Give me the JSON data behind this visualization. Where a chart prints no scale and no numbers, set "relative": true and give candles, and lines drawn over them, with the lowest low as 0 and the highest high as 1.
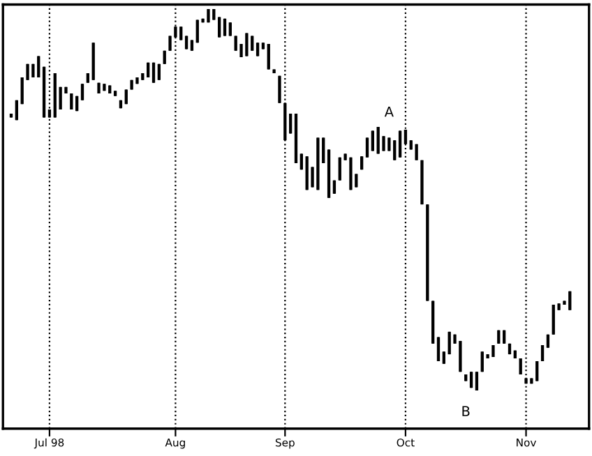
{
  "chart_data": {
    "type": "candlestick",
    "relative": true,
    "categories": [
      null,
      null,
      null,
      null,
      null,
      null,
      null,
      "Jul 98",
      null,
      null,
      null,
      null,
      null,
      null,
      null,
      null,
      null,
      null,
      null,
      null,
      null,
      null,
      null,
      null,
      null,
      null,
      null,
      null,
      null,
      null,
      "Aug",
      null,
      null,
      null,
      null,
      null,
      null,
      null,
      null,
      null,
      null,
      null,
      null,
      null,
      null,
      null,
      null,
      null,
      null,
      null,
      "Sep",
      null,
      null,
      null,
      null,
      null,
      null,
      null,
      null,
      null,
      null,
      null,
      null,
      null,
      null,
      null,
      null,
      null,
      null,
      null,
      null,
      null,
      "Oct",
      null,
      null,
      null,
      null,
      null,
      null,
      null,
      null,
      null,
      null,
      null,
      null,
      null,
      null,
      null,
      null,
      null,
      null,
      null,
      null,
      null,
      "Nov",
      null,
      null,
      null,
      null,
      null,
      null,
      null,
      null
    ],
    "ohlc": [
      [
        0.716,
        0.726,
        0.716,
        0.726
      ],
      [
        0.709,
        0.761,
        0.709,
        0.761
      ],
      [
        0.751,
        0.821,
        0.751,
        0.821
      ],
      [
        0.814,
        0.856,
        0.814,
        0.856
      ],
      [
        0.821,
        0.856,
        0.821,
        0.856
      ],
      [
        0.821,
        0.877,
        0.821,
        0.877
      ],
      [
        0.716,
        0.849,
        0.716,
        0.849
      ],
      [
        0.716,
        0.737,
        0.716,
        0.737
      ],
      [
        0.716,
        0.832,
        0.716,
        0.832
      ],
      [
        0.737,
        0.796,
        0.737,
        0.796
      ],
      [
        0.779,
        0.796,
        0.779,
        0.796
      ],
      [
        0.737,
        0.779,
        0.737,
        0.779
      ],
      [
        0.733,
        0.772,
        0.733,
        0.772
      ],
      [
        0.761,
        0.804,
        0.761,
        0.804
      ],
      [
        0.807,
        0.832,
        0.807,
        0.832
      ],
      [
        0.814,
        0.912,
        0.814,
        0.912
      ],
      [
        0.779,
        0.807,
        0.779,
        0.807
      ],
      [
        0.786,
        0.804,
        0.786,
        0.804
      ],
      [
        0.779,
        0.8,
        0.779,
        0.8
      ],
      [
        0.772,
        0.786,
        0.772,
        0.786
      ],
      [
        0.74,
        0.761,
        0.74,
        0.761
      ],
      [
        0.751,
        0.789,
        0.751,
        0.789
      ],
      [
        0.789,
        0.814,
        0.789,
        0.814
      ],
      [
        0.804,
        0.821,
        0.804,
        0.821
      ],
      [
        0.814,
        0.832,
        0.814,
        0.832
      ],
      [
        0.821,
        0.86,
        0.821,
        0.86
      ],
      [
        0.807,
        0.86,
        0.807,
        0.86
      ],
      [
        0.814,
        0.856,
        0.814,
        0.856
      ],
      [
        0.856,
        0.891,
        0.856,
        0.891
      ],
      [
        0.891,
        0.93,
        0.891,
        0.93
      ],
      [
        0.926,
        0.954,
        0.926,
        0.954
      ],
      [
        0.919,
        0.954,
        0.919,
        0.954
      ],
      [
        0.895,
        0.93,
        0.895,
        0.93
      ],
      [
        0.891,
        0.919,
        0.891,
        0.919
      ],
      [
        0.912,
        0.972,
        0.912,
        0.972
      ],
      [
        0.965,
        0.975,
        0.965,
        0.975
      ],
      [
        0.965,
        1,
        0.965,
        1
      ],
      [
        0.972,
        1,
        0.972,
        1
      ],
      [
        0.926,
        0.979,
        0.926,
        0.979
      ],
      [
        0.93,
        0.975,
        0.93,
        0.975
      ],
      [
        0.93,
        0.965,
        0.93,
        0.965
      ],
      [
        0.891,
        0.93,
        0.891,
        0.93
      ],
      [
        0.874,
        0.909,
        0.874,
        0.909
      ],
      [
        0.877,
        0.937,
        0.877,
        0.937
      ],
      [
        0.891,
        0.93,
        0.891,
        0.93
      ],
      [
        0.877,
        0.912,
        0.877,
        0.912
      ],
      [
        0.895,
        0.912,
        0.895,
        0.912
      ],
      [
        0.842,
        0.909,
        0.842,
        0.909
      ],
      [
        0.832,
        0.842,
        0.832,
        0.842
      ],
      [
        0.754,
        0.825,
        0.754,
        0.825
      ],
      [
        0.656,
        0.754,
        0.656,
        0.754
      ],
      [
        0.674,
        0.726,
        0.674,
        0.726
      ],
      [
        0.596,
        0.726,
        0.596,
        0.726
      ],
      [
        0.579,
        0.621,
        0.579,
        0.621
      ],
      [
        0.526,
        0.614,
        0.526,
        0.614
      ],
      [
        0.533,
        0.586,
        0.533,
        0.586
      ],
      [
        0.526,
        0.663,
        0.526,
        0.663
      ],
      [
        0.596,
        0.663,
        0.596,
        0.663
      ],
      [
        0.505,
        0.632,
        0.505,
        0.632
      ],
      [
        0.516,
        0.551,
        0.516,
        0.551
      ],
      [
        0.551,
        0.611,
        0.551,
        0.611
      ],
      [
        0.604,
        0.621,
        0.604,
        0.621
      ],
      [
        0.526,
        0.611,
        0.526,
        0.611
      ],
      [
        0.533,
        0.568,
        0.533,
        0.568
      ],
      [
        0.579,
        0.614,
        0.579,
        0.614
      ],
      [
        0.611,
        0.663,
        0.611,
        0.663
      ],
      [
        0.628,
        0.681,
        0.628,
        0.681
      ],
      [
        0.621,
        0.691,
        0.621,
        0.691
      ],
      [
        0.628,
        0.667,
        0.628,
        0.667
      ],
      [
        0.628,
        0.663,
        0.628,
        0.663
      ],
      [
        0.604,
        0.656,
        0.604,
        0.656
      ],
      [
        0.611,
        0.681,
        0.611,
        0.681
      ],
      [
        0.646,
        0.684,
        0.646,
        0.684
      ],
      [
        0.632,
        0.656,
        0.632,
        0.656
      ],
      [
        0.604,
        0.646,
        0.604,
        0.646
      ],
      [
        0.488,
        0.604,
        0.488,
        0.604
      ],
      [
        0.235,
        0.488,
        0.235,
        0.488
      ],
      [
        0.123,
        0.235,
        0.123,
        0.235
      ],
      [
        0.077,
        0.14,
        0.077,
        0.14
      ],
      [
        0.07,
        0.102,
        0.07,
        0.102
      ],
      [
        0.095,
        0.154,
        0.095,
        0.154
      ],
      [
        0.123,
        0.147,
        0.123,
        0.147
      ],
      [
        0.049,
        0.13,
        0.049,
        0.13
      ],
      [
        0.025,
        0.042,
        0.025,
        0.042
      ],
      [
        0.007,
        0.049,
        0.007,
        0.049
      ],
      [
        0,
        0.049,
        0,
        0.049
      ],
      [
        0.049,
        0.102,
        0.049,
        0.102
      ],
      [
        0.084,
        0.095,
        0.084,
        0.095
      ],
      [
        0.088,
        0.119,
        0.088,
        0.119
      ],
      [
        0.123,
        0.158,
        0.123,
        0.158
      ],
      [
        0.123,
        0.158,
        0.123,
        0.158
      ],
      [
        0.095,
        0.123,
        0.095,
        0.123
      ],
      [
        0.084,
        0.105,
        0.084,
        0.105
      ],
      [
        0.042,
        0.084,
        0.042,
        0.084
      ],
      [
        0.018,
        0.032,
        0.018,
        0.032
      ],
      [
        0.018,
        0.032,
        0.018,
        0.032
      ],
      [
        0.025,
        0.077,
        0.025,
        0.077
      ],
      [
        0.077,
        0.119,
        0.077,
        0.119
      ],
      [
        0.112,
        0.147,
        0.112,
        0.147
      ],
      [
        0.147,
        0.225,
        0.147,
        0.225
      ],
      [
        0.211,
        0.228,
        0.211,
        0.228
      ],
      [
        0.225,
        0.235,
        0.225,
        0.235
      ],
      [
        0.211,
        0.26,
        0.211,
        0.26
      ]
    ],
    "color": "#000000",
    "grid": "x",
    "line_style": "dotted",
    "annotations": [
      "A",
      "B"
    ]
  }
}
